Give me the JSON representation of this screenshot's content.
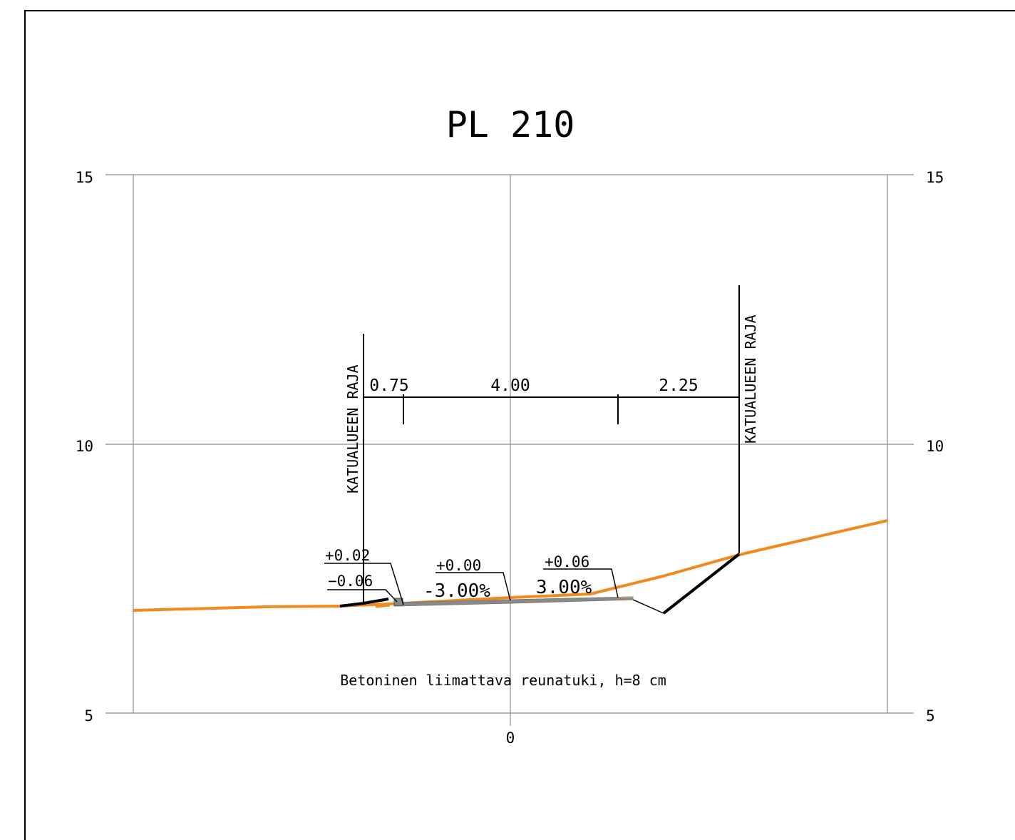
{
  "drawing": {
    "title": "PL 210",
    "note": "Betoninen liimattava reunatuki, h=8 cm"
  },
  "axis": {
    "left_labels": [
      "15",
      "10",
      "5"
    ],
    "right_labels": [
      "15",
      "10",
      "5"
    ],
    "center_label": "0"
  },
  "boundary": {
    "left_label": "KATUALUEEN RAJA",
    "right_label": "KATUALUEEN RAJA"
  },
  "dimensions": {
    "segment_1": "0.75",
    "segment_2": "4.00",
    "segment_3": "2.25"
  },
  "annotations": {
    "left_top": "+0.02",
    "left_bottom": "−0.06",
    "center_level": "+0.00",
    "center_slope": "-3.00%",
    "right_level": "+0.06",
    "right_slope": "3.00%"
  },
  "colors": {
    "ground_line": "#F08A1E",
    "structure_line": "#000000",
    "road_surface": "#8A8A8A",
    "grid": "#8C8C8C"
  }
}
